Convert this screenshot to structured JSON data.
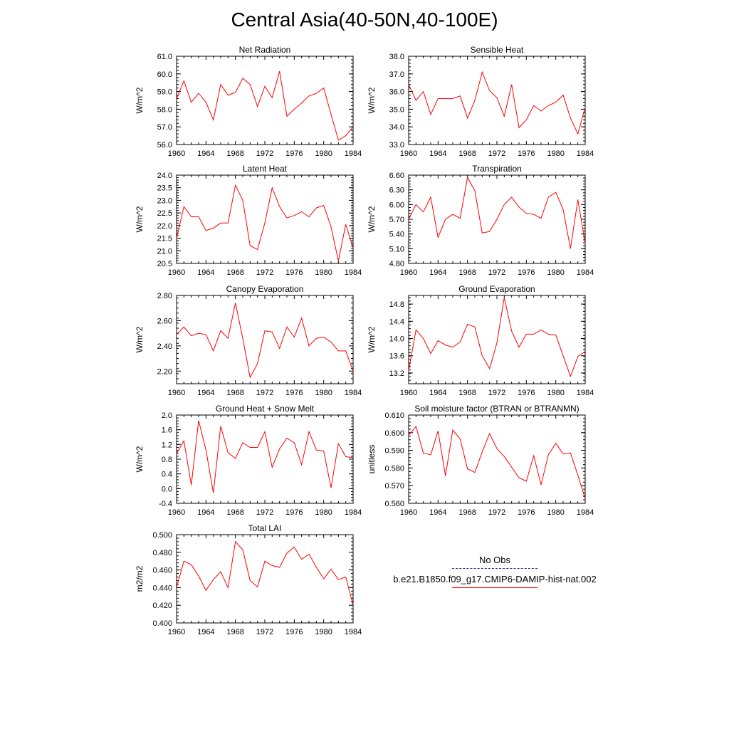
{
  "title": "Central Asia(40-50N,40-100E)",
  "legend": {
    "entries": [
      {
        "label": "No Obs",
        "color": "#2b2b8c",
        "style": "dashed"
      },
      {
        "label": "b.e21.B1850.f09_g17.CMIP6-DAMIP-hist-nat.002",
        "color": "#ff0000",
        "style": "solid"
      }
    ]
  },
  "chart_data": [
    {
      "type": "line",
      "title": "Net Radiation",
      "ylabel": "W/m^2",
      "x": [
        1960,
        1961,
        1962,
        1963,
        1964,
        1965,
        1966,
        1967,
        1968,
        1969,
        1970,
        1971,
        1972,
        1973,
        1974,
        1975,
        1976,
        1977,
        1978,
        1979,
        1980,
        1981,
        1982,
        1983,
        1984
      ],
      "xticks": [
        "1960",
        "1964",
        "1968",
        "1972",
        "1976",
        "1980",
        "1984"
      ],
      "ylim": [
        56.0,
        61.0
      ],
      "yticks": [
        "56.0",
        "57.0",
        "58.0",
        "59.0",
        "60.0",
        "61.0"
      ],
      "series": [
        {
          "values": [
            58.6,
            59.6,
            58.4,
            58.9,
            58.4,
            57.4,
            59.4,
            58.8,
            58.95,
            59.75,
            59.4,
            58.15,
            59.3,
            58.65,
            60.15,
            57.6,
            58.0,
            58.35,
            58.75,
            58.9,
            59.2,
            57.7,
            56.25,
            56.5,
            57.0
          ],
          "color": "#ff0000"
        }
      ]
    },
    {
      "type": "line",
      "title": "Sensible Heat",
      "ylabel": "W/m^2",
      "x": [
        1960,
        1961,
        1962,
        1963,
        1964,
        1965,
        1966,
        1967,
        1968,
        1969,
        1970,
        1971,
        1972,
        1973,
        1974,
        1975,
        1976,
        1977,
        1978,
        1979,
        1980,
        1981,
        1982,
        1983,
        1984
      ],
      "xticks": [
        "1960",
        "1964",
        "1968",
        "1972",
        "1976",
        "1980",
        "1984"
      ],
      "ylim": [
        33.0,
        38.0
      ],
      "yticks": [
        "33.0",
        "34.0",
        "35.0",
        "36.0",
        "37.0",
        "38.0"
      ],
      "series": [
        {
          "values": [
            36.4,
            35.5,
            36.0,
            34.7,
            35.6,
            35.6,
            35.6,
            35.75,
            34.5,
            35.5,
            37.1,
            36.05,
            35.65,
            34.6,
            36.4,
            33.95,
            34.4,
            35.2,
            34.9,
            35.2,
            35.4,
            35.8,
            34.5,
            33.6,
            35.1
          ],
          "color": "#ff0000"
        }
      ]
    },
    {
      "type": "line",
      "title": "Latent Heat",
      "ylabel": "W/m^2",
      "x": [
        1960,
        1961,
        1962,
        1963,
        1964,
        1965,
        1966,
        1967,
        1968,
        1969,
        1970,
        1971,
        1972,
        1973,
        1974,
        1975,
        1976,
        1977,
        1978,
        1979,
        1980,
        1981,
        1982,
        1983,
        1984
      ],
      "xticks": [
        "1960",
        "1964",
        "1968",
        "1972",
        "1976",
        "1980",
        "1984"
      ],
      "ylim": [
        20.5,
        24.0
      ],
      "yticks": [
        "20.5",
        "21.0",
        "21.5",
        "22.0",
        "22.5",
        "23.0",
        "23.5",
        "24.0"
      ],
      "series": [
        {
          "values": [
            21.5,
            22.75,
            22.35,
            22.35,
            21.8,
            21.9,
            22.1,
            22.1,
            23.6,
            23.0,
            21.2,
            21.05,
            22.1,
            23.5,
            22.75,
            22.3,
            22.4,
            22.55,
            22.35,
            22.7,
            22.8,
            21.95,
            20.6,
            22.05,
            21.1
          ],
          "color": "#ff0000"
        }
      ]
    },
    {
      "type": "line",
      "title": "Transpiration",
      "ylabel": "W/m^2",
      "x": [
        1960,
        1961,
        1962,
        1963,
        1964,
        1965,
        1966,
        1967,
        1968,
        1969,
        1970,
        1971,
        1972,
        1973,
        1974,
        1975,
        1976,
        1977,
        1978,
        1979,
        1980,
        1981,
        1982,
        1983,
        1984
      ],
      "xticks": [
        "1960",
        "1964",
        "1968",
        "1972",
        "1976",
        "1980",
        "1984"
      ],
      "ylim": [
        4.8,
        6.6
      ],
      "yticks": [
        "4.80",
        "5.10",
        "5.40",
        "5.70",
        "6.00",
        "6.30",
        "6.60"
      ],
      "series": [
        {
          "values": [
            5.7,
            6.0,
            5.85,
            6.15,
            5.33,
            5.7,
            5.8,
            5.72,
            6.55,
            6.28,
            5.42,
            5.45,
            5.7,
            6.0,
            6.15,
            5.95,
            5.82,
            5.8,
            5.72,
            6.15,
            6.25,
            5.9,
            5.1,
            6.1,
            5.2
          ],
          "color": "#ff0000"
        }
      ]
    },
    {
      "type": "line",
      "title": "Canopy Evaporation",
      "ylabel": "W/m^2",
      "x": [
        1960,
        1961,
        1962,
        1963,
        1964,
        1965,
        1966,
        1967,
        1968,
        1969,
        1970,
        1971,
        1972,
        1973,
        1974,
        1975,
        1976,
        1977,
        1978,
        1979,
        1980,
        1981,
        1982,
        1983,
        1984
      ],
      "xticks": [
        "1960",
        "1964",
        "1968",
        "1972",
        "1976",
        "1980",
        "1984"
      ],
      "ylim": [
        2.1,
        2.8
      ],
      "yticks": [
        "2.20",
        "2.40",
        "2.60",
        "2.80"
      ],
      "series": [
        {
          "values": [
            2.49,
            2.55,
            2.48,
            2.5,
            2.49,
            2.36,
            2.52,
            2.46,
            2.74,
            2.46,
            2.15,
            2.26,
            2.52,
            2.51,
            2.38,
            2.55,
            2.47,
            2.62,
            2.4,
            2.46,
            2.47,
            2.43,
            2.36,
            2.36,
            2.2
          ],
          "color": "#ff0000"
        }
      ]
    },
    {
      "type": "line",
      "title": "Ground Evaporation",
      "ylabel": "W/m^2",
      "x": [
        1960,
        1961,
        1962,
        1963,
        1964,
        1965,
        1966,
        1967,
        1968,
        1969,
        1970,
        1971,
        1972,
        1973,
        1974,
        1975,
        1976,
        1977,
        1978,
        1979,
        1980,
        1981,
        1982,
        1983,
        1984
      ],
      "xticks": [
        "1960",
        "1964",
        "1968",
        "1972",
        "1976",
        "1980",
        "1984"
      ],
      "ylim": [
        12.95,
        15.0
      ],
      "yticks": [
        "13.2",
        "13.6",
        "14.0",
        "14.4",
        "14.8"
      ],
      "series": [
        {
          "values": [
            13.25,
            14.2,
            14.0,
            13.65,
            13.95,
            13.85,
            13.8,
            13.92,
            14.33,
            14.27,
            13.6,
            13.3,
            13.9,
            14.95,
            14.17,
            13.8,
            14.1,
            14.1,
            14.2,
            14.1,
            14.08,
            13.6,
            13.12,
            13.58,
            13.7
          ],
          "color": "#ff0000"
        }
      ]
    },
    {
      "type": "line",
      "title": "Ground Heat + Snow Melt",
      "ylabel": "W/m^2",
      "x": [
        1960,
        1961,
        1962,
        1963,
        1964,
        1965,
        1966,
        1967,
        1968,
        1969,
        1970,
        1971,
        1972,
        1973,
        1974,
        1975,
        1976,
        1977,
        1978,
        1979,
        1980,
        1981,
        1982,
        1983,
        1984
      ],
      "xticks": [
        "1960",
        "1964",
        "1968",
        "1972",
        "1976",
        "1980",
        "1984"
      ],
      "ylim": [
        -0.4,
        2.0
      ],
      "yticks": [
        "-0.4",
        "0.0",
        "0.4",
        "0.8",
        "1.2",
        "1.6",
        "2.0"
      ],
      "series": [
        {
          "values": [
            0.95,
            1.3,
            0.1,
            1.85,
            1.05,
            -0.12,
            1.7,
            0.98,
            0.82,
            1.25,
            1.12,
            1.12,
            1.55,
            0.58,
            1.08,
            1.37,
            1.25,
            0.65,
            1.55,
            1.05,
            1.02,
            0.02,
            1.22,
            0.87,
            0.84
          ],
          "color": "#ff0000"
        }
      ]
    },
    {
      "type": "line",
      "title": "Soil moisture factor (BTRAN or BTRANMN)",
      "ylabel": "unitless",
      "x": [
        1960,
        1961,
        1962,
        1963,
        1964,
        1965,
        1966,
        1967,
        1968,
        1969,
        1970,
        1971,
        1972,
        1973,
        1974,
        1975,
        1976,
        1977,
        1978,
        1979,
        1980,
        1981,
        1982,
        1983,
        1984
      ],
      "xticks": [
        "1960",
        "1964",
        "1968",
        "1972",
        "1976",
        "1980",
        "1984"
      ],
      "ylim": [
        0.56,
        0.61
      ],
      "yticks": [
        "0.560",
        "0.570",
        "0.580",
        "0.590",
        "0.600",
        "0.610"
      ],
      "series": [
        {
          "values": [
            0.5985,
            0.6035,
            0.5885,
            0.5875,
            0.601,
            0.5755,
            0.6015,
            0.5965,
            0.5795,
            0.5775,
            0.589,
            0.5995,
            0.591,
            0.5865,
            0.5805,
            0.5745,
            0.5725,
            0.587,
            0.5705,
            0.5875,
            0.594,
            0.588,
            0.5885,
            0.576,
            0.5625
          ],
          "color": "#ff0000"
        }
      ]
    },
    {
      "type": "line",
      "title": "Total LAI",
      "ylabel": "m2/m2",
      "x": [
        1960,
        1961,
        1962,
        1963,
        1964,
        1965,
        1966,
        1967,
        1968,
        1969,
        1970,
        1971,
        1972,
        1973,
        1974,
        1975,
        1976,
        1977,
        1978,
        1979,
        1980,
        1981,
        1982,
        1983,
        1984
      ],
      "xticks": [
        "1960",
        "1964",
        "1968",
        "1972",
        "1976",
        "1980",
        "1984"
      ],
      "ylim": [
        0.4,
        0.5
      ],
      "yticks": [
        "0.400",
        "0.420",
        "0.440",
        "0.460",
        "0.480",
        "0.500"
      ],
      "series": [
        {
          "values": [
            0.44,
            0.47,
            0.466,
            0.453,
            0.437,
            0.449,
            0.458,
            0.44,
            0.492,
            0.483,
            0.448,
            0.441,
            0.47,
            0.465,
            0.463,
            0.479,
            0.486,
            0.472,
            0.478,
            0.463,
            0.45,
            0.461,
            0.449,
            0.452,
            0.42
          ],
          "color": "#ff0000"
        }
      ]
    }
  ]
}
